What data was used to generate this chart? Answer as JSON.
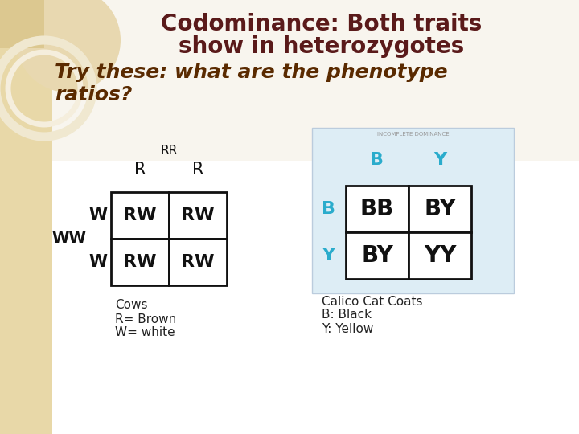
{
  "bg_color": "#f8f5ee",
  "left_panel_bg": "#e8d8a8",
  "title_line1": "Codominance: Both traits",
  "title_line2": "show in heterozygotes",
  "subtitle_line1": "Try these: what are the phenotype",
  "subtitle_line2": "ratios?",
  "title_color": "#5a1a1a",
  "subtitle_color": "#5a2a00",
  "punnett1_header_row": [
    "R",
    "R"
  ],
  "punnett1_header_col": [
    "W",
    "W"
  ],
  "punnett1_cells": [
    [
      "RW",
      "RW"
    ],
    [
      "RW",
      "RW"
    ]
  ],
  "punnett1_label_top": "RR",
  "punnett1_label_left": "WW",
  "punnett1_caption": [
    "Cows",
    "R= Brown",
    "W= white"
  ],
  "punnett2_header_row": [
    "B",
    "Y"
  ],
  "punnett2_header_col": [
    "B",
    "Y"
  ],
  "punnett2_cells": [
    [
      "BB",
      "BY"
    ],
    [
      "BY",
      "YY"
    ]
  ],
  "punnett2_header_color": "#2aaccc",
  "punnett2_caption": [
    "Calico Cat Coats",
    "B: Black",
    "Y: Yellow"
  ],
  "punnett2_bg": "#ddedf5",
  "punnett2_border": "#bbccdd",
  "cell_text_color": "#111111",
  "cell_bg": "#ffffff",
  "grid_color": "#111111",
  "caption_color": "#222222",
  "circle_fill": "#e8d8a8",
  "circle_ring": "#f0e8cc"
}
